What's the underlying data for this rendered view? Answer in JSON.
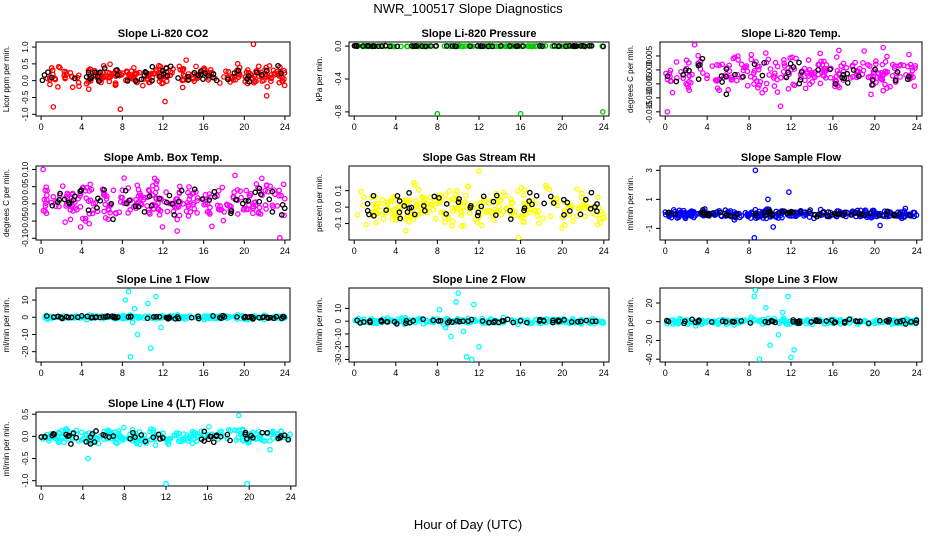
{
  "page": {
    "title": "NWR_100517  Slope Diagnostics",
    "xlabel": "Hour of Day (UTC)"
  },
  "colors": {
    "black": "#000000",
    "red": "#ff0000",
    "green": "#00cc00",
    "magenta": "#ff00ff",
    "yellow": "#ffff00",
    "blue": "#0000ff",
    "cyan": "#00ffff"
  },
  "chart_data": [
    {
      "type": "scatter",
      "title": "Slope Li-820 CO2",
      "ylabel": "Licor ppm per min.",
      "xlim": [
        0,
        24
      ],
      "xticks": [
        0,
        4,
        8,
        12,
        16,
        20,
        24
      ],
      "ylim": [
        -1.05,
        1.15
      ],
      "yticks": [
        -1.0,
        -0.5,
        0.0,
        0.5,
        1.0
      ],
      "ytick_labels": [
        "-1.0",
        "-0.5",
        "0.0",
        "0.5",
        "1.0"
      ],
      "color": "#ff0000",
      "ref_color": "#000000",
      "gen": {
        "base": 0.15,
        "spread": 0.22,
        "n": 260,
        "nref": 55,
        "seed": 11
      },
      "outliers": [
        [
          20.9,
          1.12
        ],
        [
          7.8,
          -0.85
        ],
        [
          1.2,
          -0.78
        ],
        [
          12.2,
          -0.62
        ],
        [
          22.2,
          -0.45
        ]
      ]
    },
    {
      "type": "scatter",
      "title": "Slope Li-820 Pressure",
      "ylabel": "kPa per min.",
      "xlim": [
        0,
        24
      ],
      "xticks": [
        0,
        4,
        8,
        12,
        16,
        20,
        24
      ],
      "ylim": [
        -0.85,
        0.05
      ],
      "yticks": [
        -0.8,
        -0.4,
        0.0
      ],
      "ytick_labels": [
        "-0.8",
        "-0.4",
        "0.0"
      ],
      "color": "#00cc00",
      "ref_color": "#000000",
      "gen": {
        "base": 0.0,
        "spread": 0.004,
        "n": 120,
        "nref": 60,
        "seed": 23
      },
      "outliers": [
        [
          8.0,
          -0.83
        ],
        [
          16.0,
          -0.83
        ],
        [
          23.9,
          -0.8
        ],
        [
          0.3,
          0.0
        ]
      ]
    },
    {
      "type": "scatter",
      "title": "Slope Li-820 Temp.",
      "ylabel": "degrees C per min.",
      "xlim": [
        0,
        24
      ],
      "xticks": [
        0,
        4,
        8,
        12,
        16,
        20,
        24
      ],
      "ylim": [
        -0.0165,
        0.01
      ],
      "yticks": [
        -0.015,
        -0.01,
        -0.005,
        0.0,
        0.005
      ],
      "ytick_labels": [
        "-0.015",
        "-0.010",
        "-0.005",
        "0.000",
        "0.005"
      ],
      "color": "#ff00ff",
      "ref_color": "#000000",
      "gen": {
        "base": -0.001,
        "spread": 0.0045,
        "n": 240,
        "nref": 45,
        "seed": 37
      },
      "outliers": [
        [
          2.8,
          0.009
        ],
        [
          20.8,
          0.008
        ],
        [
          0.2,
          -0.015
        ],
        [
          11.0,
          -0.013
        ]
      ]
    },
    {
      "type": "scatter",
      "title": "Slope Amb. Box Temp.",
      "ylabel": "degrees C per min.",
      "xlim": [
        0,
        24
      ],
      "xticks": [
        0,
        4,
        8,
        12,
        16,
        20,
        24
      ],
      "ylim": [
        -0.105,
        0.11
      ],
      "yticks": [
        -0.1,
        -0.05,
        0.0,
        0.05,
        0.1
      ],
      "ytick_labels": [
        "-0.10",
        "-0.05",
        "0.00",
        "0.05",
        "0.10"
      ],
      "color": "#ff00ff",
      "ref_color": "#000000",
      "gen": {
        "base": 0.005,
        "spread": 0.04,
        "n": 260,
        "nref": 55,
        "seed": 41
      },
      "outliers": [
        [
          0.2,
          0.1
        ],
        [
          23.5,
          -0.1
        ]
      ]
    },
    {
      "type": "scatter",
      "title": "Slope Gas Stream RH",
      "ylabel": "percent per min.",
      "xlim": [
        0,
        24
      ],
      "xticks": [
        0,
        4,
        8,
        12,
        16,
        20,
        24
      ],
      "ylim": [
        -0.2,
        0.25
      ],
      "yticks": [
        -0.1,
        0.0,
        0.1
      ],
      "ytick_labels": [
        "-0.1",
        "0.0",
        "0.1"
      ],
      "color": "#ffff00",
      "ref_color": "#000000",
      "gen": {
        "base": 0.0,
        "spread": 0.08,
        "n": 260,
        "nref": 55,
        "seed": 53
      },
      "outliers": [
        [
          15.8,
          -0.19
        ],
        [
          12.0,
          0.22
        ]
      ]
    },
    {
      "type": "scatter",
      "title": "Slope Sample Flow",
      "ylabel": "ml/min per min.",
      "xlim": [
        0,
        24
      ],
      "xticks": [
        0,
        4,
        8,
        12,
        16,
        20,
        24
      ],
      "ylim": [
        -1.8,
        3.3
      ],
      "yticks": [
        -1,
        1,
        3
      ],
      "ytick_labels": [
        "-1",
        "1",
        "3"
      ],
      "color": "#0000ff",
      "ref_color": "#000000",
      "gen": {
        "base": 0.0,
        "spread": 0.2,
        "n": 280,
        "nref": 60,
        "seed": 67
      },
      "outliers": [
        [
          8.6,
          3.0
        ],
        [
          8.5,
          -1.7
        ],
        [
          11.8,
          1.5
        ],
        [
          9.8,
          1.0
        ],
        [
          20.5,
          -0.8
        ],
        [
          10.3,
          -0.9
        ]
      ]
    },
    {
      "type": "scatter",
      "title": "Slope Line 1 Flow",
      "ylabel": "ml/min per min.",
      "xlim": [
        0,
        24
      ],
      "xticks": [
        0,
        4,
        8,
        12,
        16,
        20,
        24
      ],
      "ylim": [
        -26,
        17
      ],
      "yticks": [
        -20,
        -10,
        0,
        10
      ],
      "ytick_labels": [
        "-20",
        "-10",
        "0",
        "10"
      ],
      "color": "#00ffff",
      "ref_color": "#000000",
      "gen": {
        "base": 0.0,
        "spread": 0.8,
        "n": 220,
        "nref": 70,
        "seed": 79
      },
      "outliers": [
        [
          8.6,
          15
        ],
        [
          8.3,
          10
        ],
        [
          9.2,
          5
        ],
        [
          8.8,
          -23
        ],
        [
          10.8,
          -18
        ],
        [
          9.5,
          -10
        ],
        [
          11.3,
          12
        ],
        [
          10.5,
          8
        ],
        [
          11.8,
          -6
        ],
        [
          9.0,
          -3
        ]
      ]
    },
    {
      "type": "scatter",
      "title": "Slope Line 2 Flow",
      "ylabel": "ml/min per min.",
      "xlim": [
        0,
        24
      ],
      "xticks": [
        0,
        4,
        8,
        12,
        16,
        20,
        24
      ],
      "ylim": [
        -32,
        26
      ],
      "yticks": [
        -30,
        -20,
        -10,
        0,
        10
      ],
      "ytick_labels": [
        "-30",
        "-20",
        "-10",
        "0",
        "10"
      ],
      "color": "#00ffff",
      "ref_color": "#000000",
      "gen": {
        "base": 0.0,
        "spread": 1.5,
        "n": 220,
        "nref": 55,
        "seed": 83
      },
      "outliers": [
        [
          10.0,
          22
        ],
        [
          11.3,
          -30
        ],
        [
          10.8,
          -28
        ],
        [
          8.2,
          9
        ],
        [
          9.3,
          -12
        ],
        [
          9.8,
          15
        ],
        [
          12.0,
          -20
        ],
        [
          11.5,
          13
        ],
        [
          8.8,
          -5
        ],
        [
          10.5,
          -8
        ]
      ]
    },
    {
      "type": "scatter",
      "title": "Slope Line 3 Flow",
      "ylabel": "ml/min per min.",
      "xlim": [
        0,
        24
      ],
      "xticks": [
        0,
        4,
        8,
        12,
        16,
        20,
        24
      ],
      "ylim": [
        -43,
        36
      ],
      "yticks": [
        -40,
        -20,
        0,
        20
      ],
      "ytick_labels": [
        "-40",
        "-20",
        "0",
        "20"
      ],
      "color": "#00ffff",
      "ref_color": "#000000",
      "gen": {
        "base": 0.0,
        "spread": 2.0,
        "n": 220,
        "nref": 55,
        "seed": 97
      },
      "outliers": [
        [
          8.6,
          35
        ],
        [
          9.0,
          -40
        ],
        [
          8.5,
          27
        ],
        [
          11.7,
          27
        ],
        [
          12.0,
          -38
        ],
        [
          10.0,
          -25
        ],
        [
          12.3,
          -30
        ],
        [
          9.6,
          15
        ],
        [
          10.8,
          -14
        ],
        [
          8.2,
          5
        ],
        [
          11.2,
          10
        ]
      ]
    },
    {
      "type": "scatter",
      "title": "Slope Line 4 (LT) Flow",
      "ylabel": "ml/min per min.",
      "xlim": [
        0,
        24
      ],
      "xticks": [
        0,
        4,
        8,
        12,
        16,
        20,
        24
      ],
      "ylim": [
        -1.12,
        0.55
      ],
      "yticks": [
        -1.0,
        -0.5,
        0.0,
        0.5
      ],
      "ytick_labels": [
        "-1.0",
        "-0.5",
        "0.0",
        "0.5"
      ],
      "color": "#00ffff",
      "ref_color": "#000000",
      "gen": {
        "base": 0.0,
        "spread": 0.12,
        "n": 240,
        "nref": 55,
        "seed": 101
      },
      "outliers": [
        [
          12.0,
          -1.08
        ],
        [
          19.8,
          -1.08
        ],
        [
          19.0,
          0.47
        ],
        [
          4.5,
          -0.5
        ],
        [
          22.0,
          -0.3
        ]
      ]
    }
  ]
}
